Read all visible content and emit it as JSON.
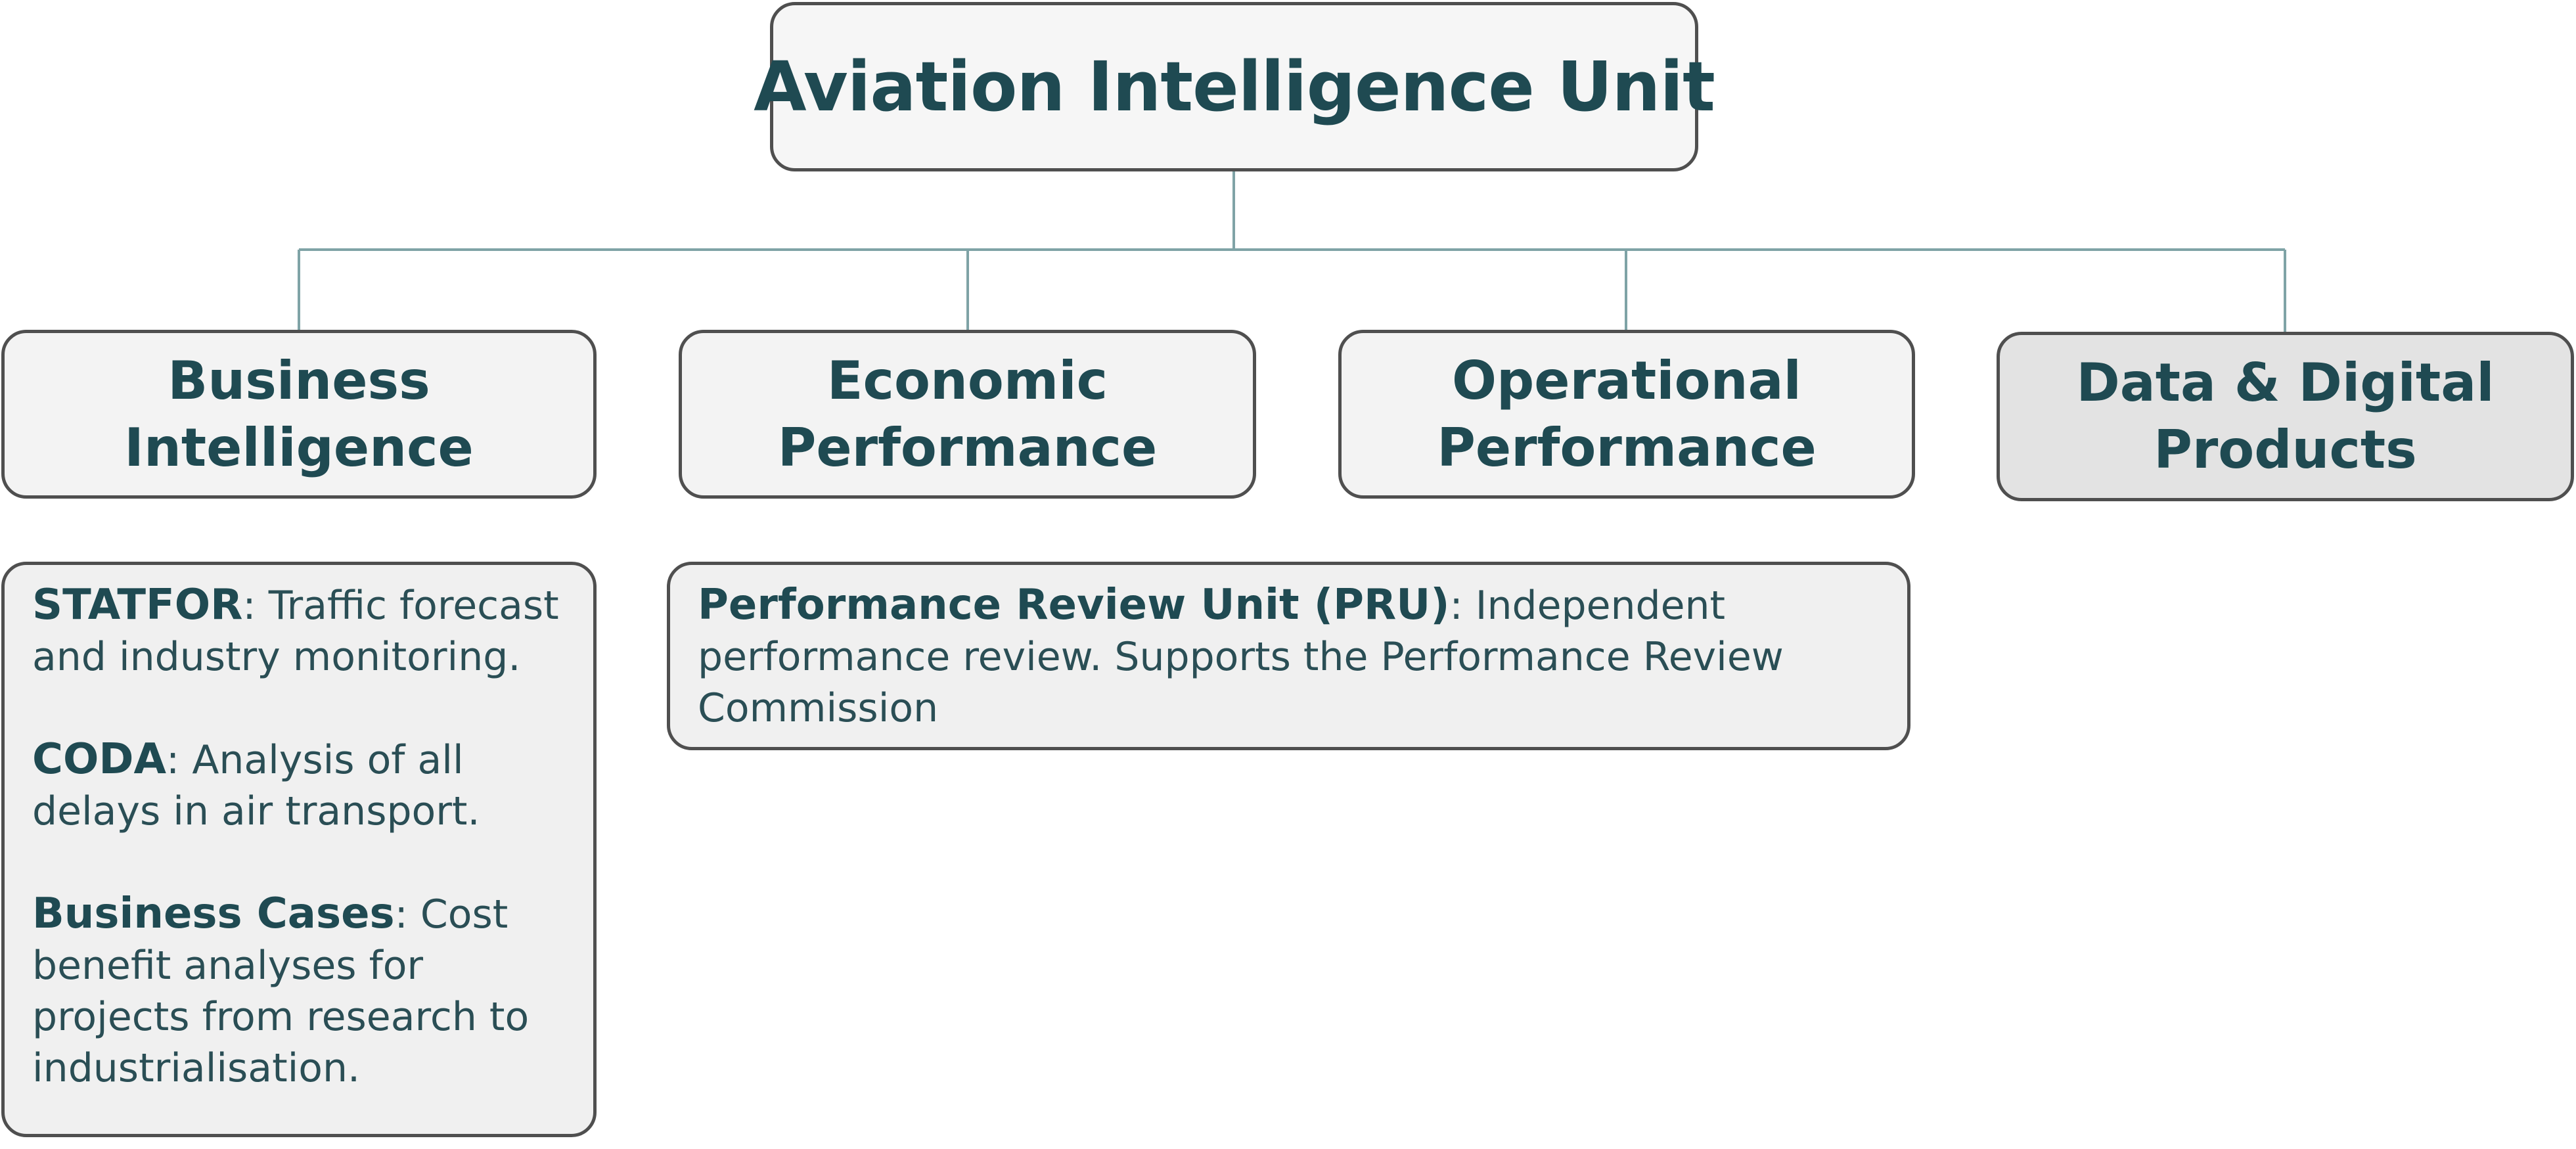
{
  "root": {
    "title": "Aviation Intelligence Unit"
  },
  "units": [
    {
      "line1": "Business",
      "line2": "Intelligence"
    },
    {
      "line1": "Economic",
      "line2": "Performance"
    },
    {
      "line1": "Operational",
      "line2": "Performance"
    },
    {
      "line1": "Data & Digital",
      "line2": "Products"
    }
  ],
  "business_intelligence_items": [
    {
      "name": "STATFOR",
      "text": ": Traffic forecast and industry monitoring."
    },
    {
      "name": "CODA",
      "text": ": Analysis of all delays in air transport."
    },
    {
      "name": "Business Cases",
      "text": ": Cost benefit analyses for projects from research to industrialisation."
    }
  ],
  "performance_items": [
    {
      "name": "Performance Review Unit (PRU)",
      "text": ": Independent performance review. Supports the Performance Review Commission"
    }
  ],
  "colors": {
    "text": "#1f4a52",
    "connector": "#7fa3a6",
    "border": "#4f4f4f",
    "box_fill": "#f3f3f3",
    "highlight_fill": "#e3e3e3"
  }
}
